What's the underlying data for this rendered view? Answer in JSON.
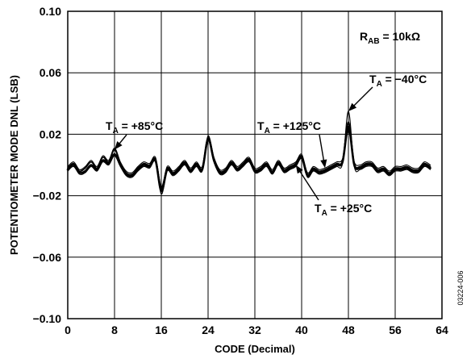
{
  "chart_data": {
    "type": "line",
    "title": "",
    "xlabel": "CODE (Decimal)",
    "ylabel": "POTENTIOMETER MODE DNL (LSB)",
    "xlim": [
      0,
      64
    ],
    "ylim": [
      -0.1,
      0.1
    ],
    "x_ticks": [
      "0",
      "8",
      "16",
      "24",
      "32",
      "40",
      "48",
      "56",
      "64"
    ],
    "y_ticks": [
      "0.10",
      "0.06",
      "0.02",
      "−0.02",
      "−0.06",
      "−0.10"
    ],
    "grid": true,
    "series": [
      {
        "name": "T = +25°C",
        "color": "#000000",
        "x": [
          0,
          1,
          2,
          3,
          4,
          5,
          6,
          7,
          8,
          9,
          10,
          11,
          12,
          13,
          14,
          15,
          16,
          17,
          18,
          19,
          20,
          21,
          22,
          23,
          24,
          25,
          26,
          27,
          28,
          29,
          30,
          31,
          32,
          33,
          34,
          35,
          36,
          37,
          38,
          39,
          40,
          41,
          42,
          43,
          44,
          45,
          46,
          47,
          48,
          49,
          50,
          51,
          52,
          53,
          54,
          55,
          56,
          57,
          58,
          59,
          60,
          61,
          62
        ],
        "values": [
          -0.003,
          0.0,
          -0.005,
          -0.004,
          0.0,
          -0.003,
          0.003,
          0.001,
          0.007,
          0.0,
          -0.006,
          -0.007,
          -0.003,
          0.0,
          -0.001,
          0.003,
          -0.017,
          -0.003,
          -0.006,
          -0.003,
          0.001,
          -0.004,
          0.0,
          -0.003,
          0.017,
          0.003,
          -0.005,
          -0.004,
          0.001,
          -0.003,
          0.0,
          0.003,
          -0.004,
          -0.003,
          0.0,
          -0.005,
          0.001,
          -0.004,
          -0.002,
          0.0,
          0.005,
          -0.007,
          -0.003,
          -0.005,
          -0.004,
          -0.002,
          0.0,
          0.002,
          0.025,
          0.0,
          -0.002,
          0.0,
          0.0,
          -0.004,
          -0.003,
          -0.006,
          -0.003,
          -0.003,
          -0.002,
          -0.004,
          -0.004,
          0.0,
          -0.002
        ]
      },
      {
        "name": "T = +85°C",
        "color": "#000000",
        "x": [
          0,
          1,
          2,
          3,
          4,
          5,
          6,
          7,
          8,
          9,
          10,
          11,
          12,
          13,
          14,
          15,
          16,
          17,
          18,
          19,
          20,
          21,
          22,
          23,
          24,
          25,
          26,
          27,
          28,
          29,
          30,
          31,
          32,
          33,
          34,
          35,
          36,
          37,
          38,
          39,
          40,
          41,
          42,
          43,
          44,
          45,
          46,
          47,
          48,
          49,
          50,
          51,
          52,
          53,
          54,
          55,
          56,
          57,
          58,
          59,
          60,
          61,
          62
        ],
        "values": [
          -0.002,
          0.001,
          -0.004,
          -0.002,
          0.002,
          -0.002,
          0.005,
          0.002,
          0.01,
          0.001,
          -0.005,
          -0.006,
          -0.002,
          0.001,
          0.0,
          0.004,
          -0.015,
          -0.002,
          -0.005,
          -0.002,
          0.002,
          -0.003,
          0.001,
          -0.002,
          0.018,
          0.004,
          -0.004,
          -0.003,
          0.002,
          -0.002,
          0.001,
          0.004,
          -0.003,
          -0.002,
          0.001,
          -0.004,
          0.002,
          -0.003,
          -0.001,
          0.001,
          0.006,
          -0.006,
          -0.002,
          -0.004,
          -0.003,
          -0.001,
          0.001,
          0.003,
          0.028,
          0.001,
          -0.001,
          0.001,
          0.001,
          -0.003,
          -0.002,
          -0.005,
          -0.002,
          -0.002,
          -0.001,
          -0.003,
          -0.003,
          0.001,
          -0.001
        ]
      },
      {
        "name": "T = −40°C",
        "color": "#000000",
        "x": [
          0,
          1,
          2,
          3,
          4,
          5,
          6,
          7,
          8,
          9,
          10,
          11,
          12,
          13,
          14,
          15,
          16,
          17,
          18,
          19,
          20,
          21,
          22,
          23,
          24,
          25,
          26,
          27,
          28,
          29,
          30,
          31,
          32,
          33,
          34,
          35,
          36,
          37,
          38,
          39,
          40,
          41,
          42,
          43,
          44,
          45,
          46,
          47,
          48,
          49,
          50,
          51,
          52,
          53,
          54,
          55,
          56,
          57,
          58,
          59,
          60,
          61,
          62
        ],
        "values": [
          -0.004,
          -0.001,
          -0.006,
          -0.005,
          -0.001,
          -0.004,
          0.002,
          0.0,
          0.006,
          -0.001,
          -0.007,
          -0.008,
          -0.004,
          -0.001,
          -0.002,
          0.002,
          -0.019,
          -0.004,
          -0.007,
          -0.004,
          0.0,
          -0.005,
          -0.001,
          -0.004,
          0.016,
          0.002,
          -0.006,
          -0.005,
          0.0,
          -0.004,
          -0.001,
          0.002,
          -0.005,
          -0.004,
          -0.001,
          -0.006,
          0.0,
          -0.005,
          -0.003,
          -0.001,
          0.004,
          -0.008,
          -0.004,
          -0.006,
          -0.005,
          -0.003,
          -0.001,
          0.001,
          0.035,
          -0.001,
          -0.003,
          -0.001,
          -0.001,
          -0.005,
          -0.004,
          -0.007,
          -0.004,
          -0.004,
          -0.003,
          -0.005,
          -0.005,
          -0.001,
          -0.003
        ]
      },
      {
        "name": "T = +125°C",
        "color": "#000000",
        "x": [
          0,
          1,
          2,
          3,
          4,
          5,
          6,
          7,
          8,
          9,
          10,
          11,
          12,
          13,
          14,
          15,
          16,
          17,
          18,
          19,
          20,
          21,
          22,
          23,
          24,
          25,
          26,
          27,
          28,
          29,
          30,
          31,
          32,
          33,
          34,
          35,
          36,
          37,
          38,
          39,
          40,
          41,
          42,
          43,
          44,
          45,
          46,
          47,
          48,
          49,
          50,
          51,
          52,
          53,
          54,
          55,
          56,
          57,
          58,
          59,
          60,
          61,
          62
        ],
        "values": [
          -0.001,
          0.002,
          -0.003,
          -0.001,
          0.003,
          -0.001,
          0.006,
          0.003,
          0.011,
          0.002,
          -0.004,
          -0.005,
          -0.001,
          0.002,
          0.001,
          0.005,
          -0.014,
          -0.001,
          -0.004,
          -0.001,
          0.003,
          -0.002,
          0.002,
          -0.001,
          0.019,
          0.005,
          -0.003,
          -0.002,
          0.003,
          -0.001,
          0.002,
          0.005,
          -0.002,
          -0.001,
          0.002,
          -0.003,
          0.003,
          -0.002,
          0.0,
          0.002,
          0.007,
          -0.005,
          -0.001,
          -0.003,
          -0.002,
          0.0,
          0.002,
          0.004,
          0.022,
          0.002,
          0.0,
          0.002,
          0.002,
          -0.002,
          -0.001,
          -0.004,
          -0.001,
          -0.001,
          0.0,
          -0.002,
          -0.002,
          0.002,
          0.0
        ]
      }
    ],
    "annotations": [
      {
        "base": "T",
        "sub": "A",
        "rest": " = +85°C",
        "target_series": 1,
        "target_x": 8
      },
      {
        "base": "T",
        "sub": "A",
        "rest": " = +125°C",
        "target_series": 3,
        "target_x": 44
      },
      {
        "base": "T",
        "sub": "A",
        "rest": " = −40°C",
        "target_series": 2,
        "target_x": 48
      },
      {
        "base": "T",
        "sub": "A",
        "rest": " = +25°C",
        "target_series": 0,
        "target_x": 39
      }
    ],
    "condition_label": {
      "base": "R",
      "sub": "AB",
      "rest": " = 10kΩ"
    },
    "figure_id": "03224-006"
  }
}
